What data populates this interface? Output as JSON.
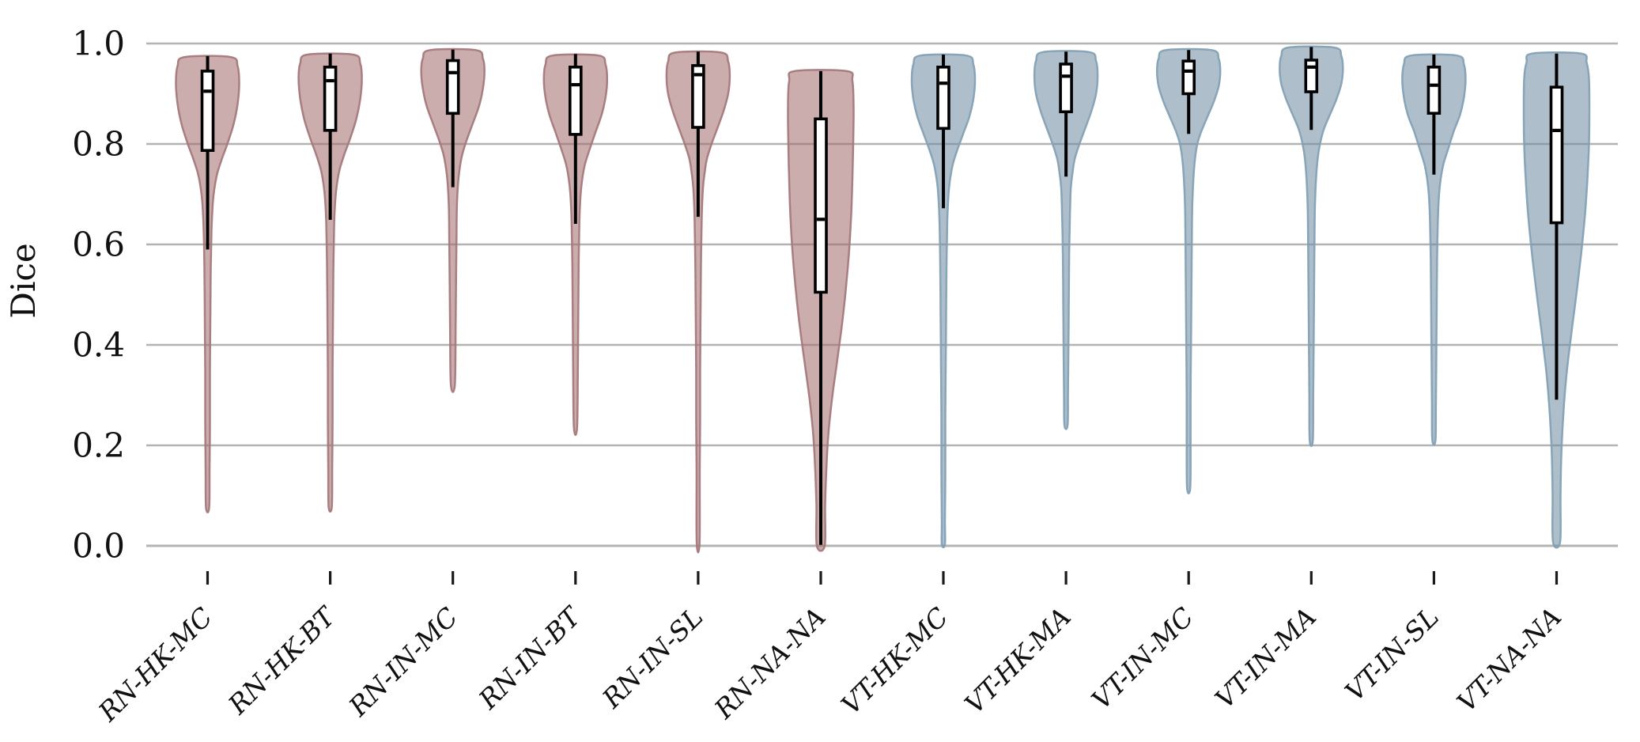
{
  "style": {
    "background": "#ffffff",
    "grid_color": "#b3b3b3",
    "axis_text_color": "#111111",
    "tick_mark_color": "#1a1a1a",
    "box_fill": "#ffffff",
    "box_edge": "#000000",
    "group_colors": {
      "RN": {
        "fill": "#a06a6c",
        "edge": "#a5797c"
      },
      "VT": {
        "fill": "#6b8ba0",
        "edge": "#84a1b5"
      }
    },
    "fill_opacity": 0.55
  },
  "chart_data": {
    "type": "violin",
    "title": "",
    "xlabel": "",
    "ylabel": "Dice",
    "ylim": [
      0.0,
      1.0
    ],
    "yticks": [
      0.0,
      0.2,
      0.4,
      0.6,
      0.8,
      1.0
    ],
    "ytick_labels": [
      "0.0",
      "0.2",
      "0.4",
      "0.6",
      "0.8",
      "1.0"
    ],
    "grid": true,
    "legend_position": "none",
    "x_tick_label_rotation_deg": 45,
    "inner": "box",
    "categories": [
      "RN-HK-MC",
      "RN-HK-BT",
      "RN-IN-MC",
      "RN-IN-BT",
      "RN-IN-SL",
      "RN-NA-NA",
      "VT-HK-MC",
      "VT-HK-MA",
      "VT-IN-MC",
      "VT-IN-MA",
      "VT-IN-SL",
      "VT-NA-NA"
    ],
    "series": [
      {
        "label": "RN-HK-MC",
        "group": "RN",
        "stats": {
          "whisker_low": 0.59,
          "q1": 0.787,
          "median": 0.905,
          "q3": 0.945,
          "whisker_high": 0.975,
          "min": 0.076,
          "max": 0.973
        },
        "shape": [
          [
            0.973,
            29
          ],
          [
            0.955,
            38
          ],
          [
            0.92,
            40
          ],
          [
            0.88,
            38
          ],
          [
            0.84,
            33
          ],
          [
            0.8,
            25
          ],
          [
            0.77,
            18
          ],
          [
            0.74,
            12
          ],
          [
            0.71,
            8.5
          ],
          [
            0.68,
            6.5
          ],
          [
            0.63,
            5
          ],
          [
            0.55,
            4
          ],
          [
            0.45,
            3.5
          ],
          [
            0.35,
            3
          ],
          [
            0.25,
            3
          ],
          [
            0.15,
            2.5
          ],
          [
            0.076,
            2
          ]
        ]
      },
      {
        "label": "RN-HK-BT",
        "group": "RN",
        "stats": {
          "whisker_low": 0.649,
          "q1": 0.827,
          "median": 0.926,
          "q3": 0.953,
          "whisker_high": 0.98,
          "min": 0.077,
          "max": 0.978
        },
        "shape": [
          [
            0.978,
            29
          ],
          [
            0.96,
            38
          ],
          [
            0.93,
            40
          ],
          [
            0.89,
            38
          ],
          [
            0.85,
            33
          ],
          [
            0.81,
            25
          ],
          [
            0.78,
            18
          ],
          [
            0.75,
            12
          ],
          [
            0.72,
            8.5
          ],
          [
            0.69,
            6.5
          ],
          [
            0.64,
            5
          ],
          [
            0.55,
            4
          ],
          [
            0.45,
            3.5
          ],
          [
            0.35,
            3
          ],
          [
            0.25,
            3
          ],
          [
            0.15,
            2.5
          ],
          [
            0.077,
            2
          ]
        ]
      },
      {
        "label": "RN-IN-MC",
        "group": "RN",
        "stats": {
          "whisker_low": 0.714,
          "q1": 0.861,
          "median": 0.942,
          "q3": 0.966,
          "whisker_high": 0.988,
          "min": 0.32,
          "max": 0.987
        },
        "shape": [
          [
            0.987,
            29
          ],
          [
            0.97,
            38
          ],
          [
            0.945,
            40
          ],
          [
            0.91,
            38
          ],
          [
            0.875,
            33
          ],
          [
            0.84,
            25
          ],
          [
            0.81,
            18
          ],
          [
            0.78,
            12
          ],
          [
            0.75,
            8.5
          ],
          [
            0.72,
            6.5
          ],
          [
            0.67,
            5
          ],
          [
            0.6,
            4.5
          ],
          [
            0.52,
            4
          ],
          [
            0.43,
            3.5
          ],
          [
            0.32,
            2.5
          ]
        ]
      },
      {
        "label": "RN-IN-BT",
        "group": "RN",
        "stats": {
          "whisker_low": 0.641,
          "q1": 0.819,
          "median": 0.918,
          "q3": 0.953,
          "whisker_high": 0.979,
          "min": 0.235,
          "max": 0.976
        },
        "shape": [
          [
            0.976,
            29
          ],
          [
            0.958,
            38
          ],
          [
            0.928,
            40
          ],
          [
            0.893,
            38
          ],
          [
            0.858,
            33
          ],
          [
            0.822,
            25
          ],
          [
            0.79,
            18
          ],
          [
            0.76,
            12
          ],
          [
            0.73,
            8.5
          ],
          [
            0.7,
            6.5
          ],
          [
            0.65,
            5
          ],
          [
            0.56,
            4
          ],
          [
            0.46,
            3.5
          ],
          [
            0.35,
            3
          ],
          [
            0.235,
            2
          ]
        ]
      },
      {
        "label": "RN-IN-SL",
        "group": "RN",
        "stats": {
          "whisker_low": 0.655,
          "q1": 0.833,
          "median": 0.938,
          "q3": 0.956,
          "whisker_high": 0.984,
          "min": 0.005,
          "max": 0.982
        },
        "shape": [
          [
            0.982,
            29
          ],
          [
            0.964,
            38
          ],
          [
            0.935,
            40
          ],
          [
            0.9,
            38
          ],
          [
            0.865,
            32
          ],
          [
            0.83,
            24
          ],
          [
            0.8,
            17
          ],
          [
            0.77,
            11
          ],
          [
            0.74,
            8
          ],
          [
            0.71,
            6
          ],
          [
            0.65,
            4.5
          ],
          [
            0.55,
            3.5
          ],
          [
            0.45,
            3
          ],
          [
            0.35,
            2.5
          ],
          [
            0.25,
            2.5
          ],
          [
            0.15,
            2
          ],
          [
            0.005,
            1.8
          ]
        ]
      },
      {
        "label": "RN-NA-NA",
        "group": "RN",
        "stats": {
          "whisker_low": 0.002,
          "q1": 0.505,
          "median": 0.65,
          "q3": 0.85,
          "whisker_high": 0.945,
          "min": 0.0,
          "max": 0.945
        },
        "shape": [
          [
            0.945,
            33
          ],
          [
            0.925,
            40
          ],
          [
            0.87,
            41.5
          ],
          [
            0.8,
            41
          ],
          [
            0.73,
            40
          ],
          [
            0.66,
            38.5
          ],
          [
            0.58,
            35.5
          ],
          [
            0.5,
            31
          ],
          [
            0.43,
            26
          ],
          [
            0.36,
            20
          ],
          [
            0.29,
            14
          ],
          [
            0.22,
            9.5
          ],
          [
            0.15,
            7
          ],
          [
            0.08,
            5.5
          ],
          [
            0.0,
            5
          ]
        ]
      },
      {
        "label": "VT-HK-MC",
        "group": "VT",
        "stats": {
          "whisker_low": 0.672,
          "q1": 0.831,
          "median": 0.921,
          "q3": 0.953,
          "whisker_high": 0.978,
          "min": 0.003,
          "max": 0.976
        },
        "shape": [
          [
            0.976,
            29
          ],
          [
            0.958,
            38
          ],
          [
            0.925,
            40
          ],
          [
            0.89,
            38
          ],
          [
            0.855,
            33
          ],
          [
            0.82,
            25
          ],
          [
            0.79,
            18
          ],
          [
            0.76,
            12
          ],
          [
            0.73,
            8.5
          ],
          [
            0.7,
            6.5
          ],
          [
            0.65,
            5
          ],
          [
            0.56,
            4
          ],
          [
            0.46,
            3.5
          ],
          [
            0.36,
            3
          ],
          [
            0.26,
            2.5
          ],
          [
            0.15,
            2.5
          ],
          [
            0.05,
            2
          ],
          [
            0.003,
            2
          ]
        ]
      },
      {
        "label": "VT-HK-MA",
        "group": "VT",
        "stats": {
          "whisker_low": 0.735,
          "q1": 0.864,
          "median": 0.935,
          "q3": 0.959,
          "whisker_high": 0.984,
          "min": 0.24,
          "max": 0.983
        },
        "shape": [
          [
            0.983,
            29
          ],
          [
            0.965,
            38
          ],
          [
            0.935,
            40
          ],
          [
            0.9,
            38
          ],
          [
            0.865,
            32
          ],
          [
            0.83,
            24
          ],
          [
            0.8,
            17
          ],
          [
            0.77,
            11
          ],
          [
            0.74,
            8
          ],
          [
            0.71,
            6
          ],
          [
            0.66,
            5
          ],
          [
            0.58,
            4
          ],
          [
            0.48,
            3.5
          ],
          [
            0.38,
            3
          ],
          [
            0.3,
            2.5
          ],
          [
            0.24,
            2
          ]
        ]
      },
      {
        "label": "VT-IN-MC",
        "group": "VT",
        "stats": {
          "whisker_low": 0.82,
          "q1": 0.9,
          "median": 0.945,
          "q3": 0.965,
          "whisker_high": 0.987,
          "min": 0.115,
          "max": 0.987
        },
        "shape": [
          [
            0.987,
            29
          ],
          [
            0.97,
            38
          ],
          [
            0.945,
            40
          ],
          [
            0.915,
            38
          ],
          [
            0.885,
            32
          ],
          [
            0.855,
            24
          ],
          [
            0.825,
            16
          ],
          [
            0.8,
            11
          ],
          [
            0.77,
            8
          ],
          [
            0.73,
            6
          ],
          [
            0.67,
            4.5
          ],
          [
            0.6,
            4
          ],
          [
            0.5,
            3.5
          ],
          [
            0.4,
            3
          ],
          [
            0.3,
            2.5
          ],
          [
            0.2,
            2.5
          ],
          [
            0.115,
            2
          ]
        ]
      },
      {
        "label": "VT-IN-MA",
        "group": "VT",
        "stats": {
          "whisker_low": 0.828,
          "q1": 0.904,
          "median": 0.953,
          "q3": 0.967,
          "whisker_high": 0.993,
          "min": 0.21,
          "max": 0.992
        },
        "shape": [
          [
            0.992,
            29
          ],
          [
            0.975,
            38
          ],
          [
            0.95,
            40
          ],
          [
            0.92,
            38
          ],
          [
            0.89,
            32
          ],
          [
            0.86,
            24
          ],
          [
            0.83,
            16
          ],
          [
            0.8,
            11
          ],
          [
            0.77,
            8
          ],
          [
            0.73,
            6
          ],
          [
            0.67,
            4.5
          ],
          [
            0.6,
            4
          ],
          [
            0.5,
            3.5
          ],
          [
            0.4,
            3
          ],
          [
            0.3,
            2.5
          ],
          [
            0.21,
            2
          ]
        ]
      },
      {
        "label": "VT-IN-SL",
        "group": "VT",
        "stats": {
          "whisker_low": 0.739,
          "q1": 0.861,
          "median": 0.917,
          "q3": 0.953,
          "whisker_high": 0.978,
          "min": 0.21,
          "max": 0.976
        },
        "shape": [
          [
            0.976,
            29
          ],
          [
            0.958,
            38
          ],
          [
            0.928,
            40
          ],
          [
            0.893,
            38
          ],
          [
            0.858,
            33
          ],
          [
            0.825,
            25
          ],
          [
            0.79,
            18
          ],
          [
            0.76,
            12
          ],
          [
            0.73,
            8.5
          ],
          [
            0.7,
            6.5
          ],
          [
            0.65,
            5
          ],
          [
            0.57,
            4
          ],
          [
            0.47,
            3.5
          ],
          [
            0.37,
            3
          ],
          [
            0.28,
            2.5
          ],
          [
            0.21,
            2
          ]
        ]
      },
      {
        "label": "VT-NA-NA",
        "group": "VT",
        "stats": {
          "whisker_low": 0.291,
          "q1": 0.643,
          "median": 0.827,
          "q3": 0.913,
          "whisker_high": 0.98,
          "min": 0.008,
          "max": 0.98
        },
        "shape": [
          [
            0.98,
            31
          ],
          [
            0.962,
            38
          ],
          [
            0.93,
            41
          ],
          [
            0.87,
            41.5
          ],
          [
            0.8,
            41
          ],
          [
            0.73,
            39
          ],
          [
            0.66,
            36
          ],
          [
            0.58,
            31
          ],
          [
            0.5,
            25
          ],
          [
            0.42,
            18.5
          ],
          [
            0.34,
            12.5
          ],
          [
            0.26,
            8.5
          ],
          [
            0.18,
            6
          ],
          [
            0.1,
            5
          ],
          [
            0.008,
            4.5
          ]
        ]
      }
    ]
  }
}
